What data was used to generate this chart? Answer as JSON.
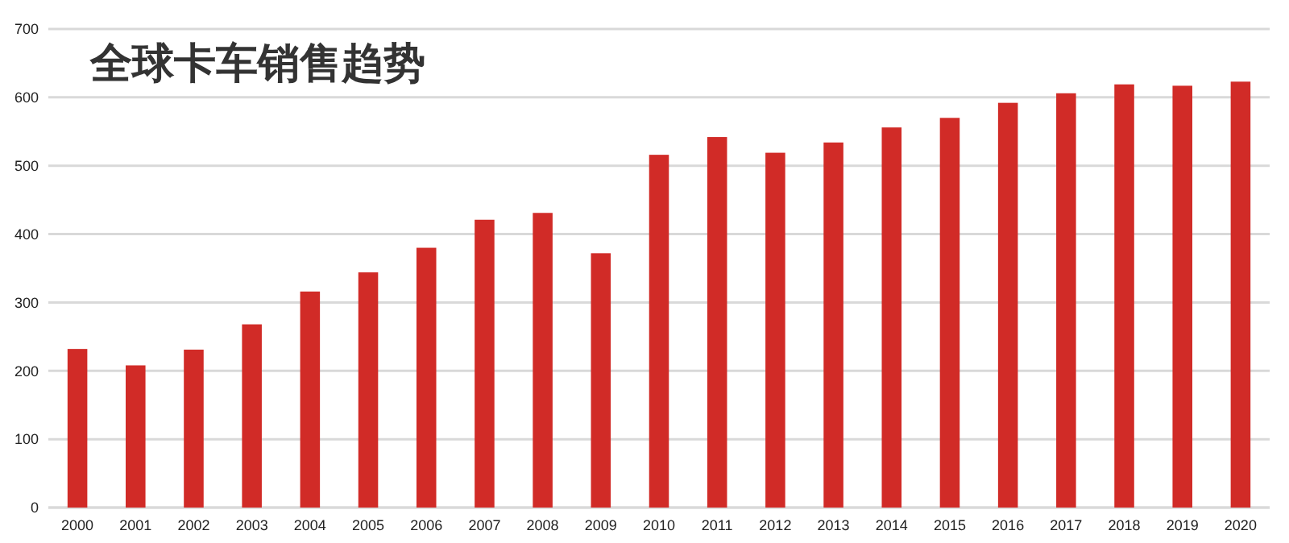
{
  "chart_data": {
    "type": "bar",
    "title": "全球卡车销售趋势",
    "categories": [
      "2000",
      "2001",
      "2002",
      "2003",
      "2004",
      "2005",
      "2006",
      "2007",
      "2008",
      "2009",
      "2010",
      "2011",
      "2012",
      "2013",
      "2014",
      "2015",
      "2016",
      "2017",
      "2018",
      "2019",
      "2020"
    ],
    "values": [
      232,
      208,
      231,
      268,
      316,
      344,
      380,
      421,
      431,
      372,
      516,
      542,
      519,
      534,
      556,
      570,
      592,
      606,
      619,
      617,
      623
    ],
    "color": "#d12b27",
    "ylim": [
      0,
      700
    ],
    "yticks": [
      0,
      100,
      200,
      300,
      400,
      500,
      600,
      700
    ],
    "grid": "y"
  }
}
